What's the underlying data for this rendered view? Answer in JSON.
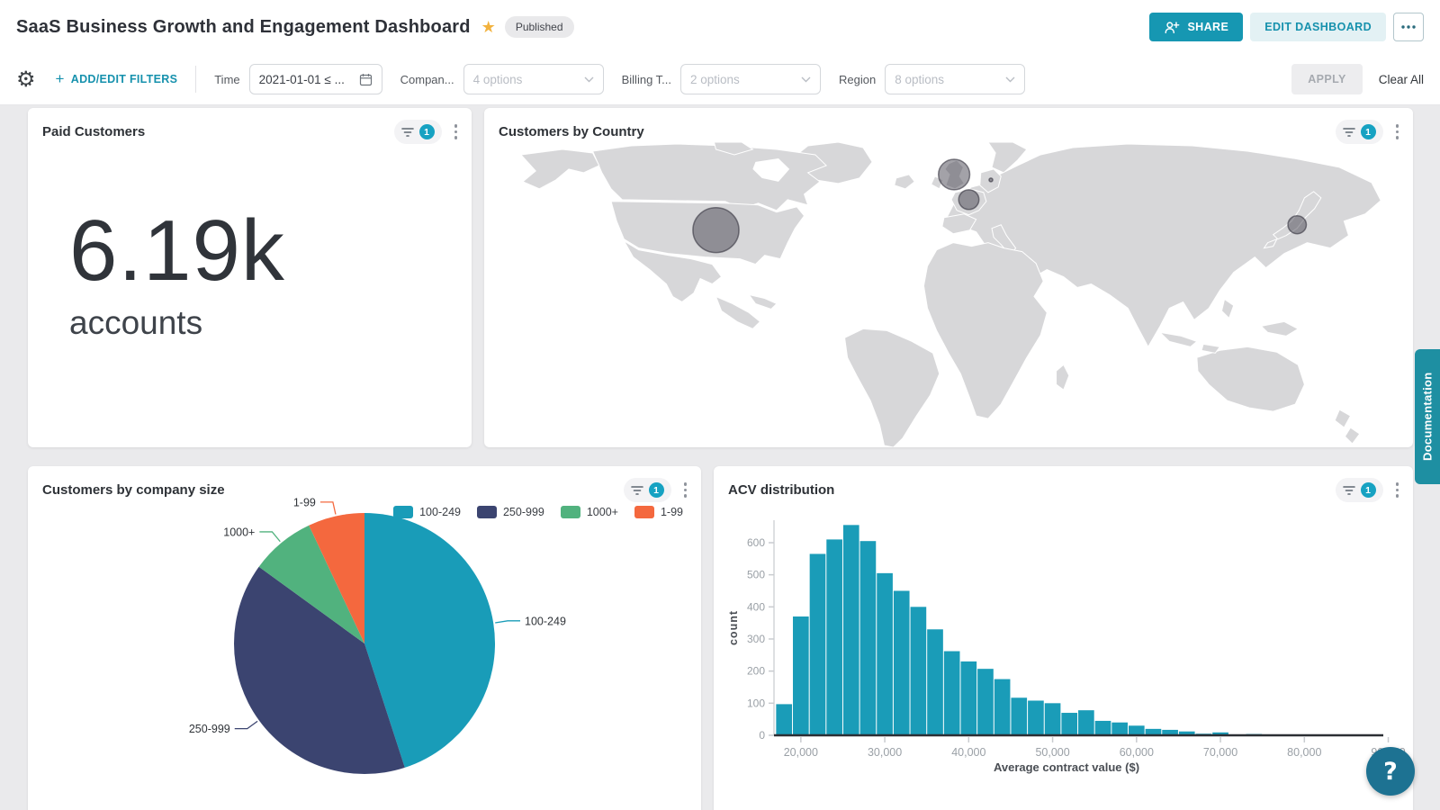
{
  "header": {
    "title": "SaaS Business Growth and Engagement Dashboard",
    "published_badge": "Published",
    "share_label": "SHARE",
    "edit_label": "EDIT DASHBOARD"
  },
  "filter_bar": {
    "add_edit_label": "ADD/EDIT FILTERS",
    "filters": [
      {
        "label": "Time",
        "value": "2021-01-01 ≤ ..."
      },
      {
        "label": "Compan...",
        "value": "4 options"
      },
      {
        "label": "Billing T...",
        "value": "2 options"
      },
      {
        "label": "Region",
        "value": "8 options"
      }
    ],
    "apply_label": "APPLY",
    "clear_label": "Clear All"
  },
  "widgets": {
    "kpi": {
      "title": "Paid Customers",
      "filter_count": "1",
      "value": "6.19k",
      "unit": "accounts"
    },
    "map": {
      "title": "Customers by Country",
      "filter_count": "1"
    },
    "pie": {
      "title": "Customers by company size",
      "filter_count": "1"
    },
    "hist": {
      "title": "ACV distribution",
      "filter_count": "1"
    }
  },
  "side": {
    "doc_tab": "Documentation",
    "help_label": "?"
  },
  "chart_data": [
    {
      "id": "customers-by-country",
      "type": "choropleth_map",
      "title": "Customers by Country",
      "base_land_color": "#d7d7d9",
      "countries": [
        {
          "id": "canada",
          "name": "Canada",
          "color": "#1b9dc4",
          "bubble_r": 0
        },
        {
          "id": "usa",
          "name": "United States",
          "color": "#a350b8",
          "bubble_r": 25
        },
        {
          "id": "mexico",
          "name": "Mexico",
          "color": "#58585a",
          "bubble_r": 0
        },
        {
          "id": "uk",
          "name": "United Kingdom",
          "color": "#d2a31c",
          "bubble_r": 17
        },
        {
          "id": "france",
          "name": "France",
          "color": "#2d3a66",
          "bubble_r": 11
        },
        {
          "id": "germany",
          "name": "Germany",
          "color": "#4db878",
          "bubble_r": 2
        },
        {
          "id": "japan",
          "name": "Japan",
          "color": "#f05423",
          "bubble_r": 10
        }
      ]
    },
    {
      "id": "customers-by-company-size",
      "type": "pie",
      "title": "Customers by company size",
      "labels": [
        "100-249",
        "250-999",
        "1000+",
        "1-99"
      ],
      "values_pct": [
        45,
        40,
        8,
        7
      ],
      "colors": [
        "#199cb8",
        "#3b4470",
        "#51b27e",
        "#f4683e"
      ],
      "legend_position": "top-right"
    },
    {
      "id": "acv-distribution",
      "type": "bar",
      "title": "ACV distribution",
      "xlabel": "Average contract value ($)",
      "ylabel": "count",
      "bin_start": 17000,
      "bin_width": 2000,
      "values": [
        97,
        370,
        565,
        610,
        655,
        605,
        505,
        450,
        400,
        330,
        262,
        230,
        207,
        175,
        117,
        108,
        100,
        70,
        78,
        45,
        40,
        30,
        20,
        17,
        12,
        5,
        9,
        1,
        4
      ],
      "xlim": [
        16800,
        90800
      ],
      "ylim": [
        0,
        670
      ],
      "yticks": [
        0,
        100,
        200,
        300,
        400,
        500,
        600
      ],
      "xticks": [
        20000,
        30000,
        40000,
        50000,
        60000,
        70000,
        80000,
        90000
      ],
      "bar_color": "#1a9cb8",
      "grid": false
    }
  ]
}
